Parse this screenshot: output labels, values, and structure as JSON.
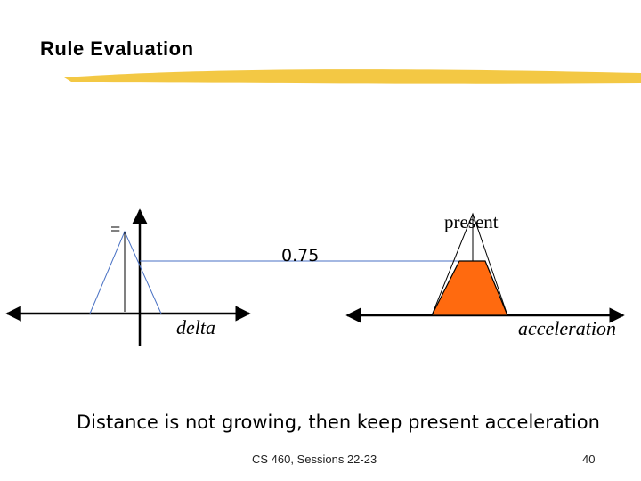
{
  "slide": {
    "title": "Rule Evaluation",
    "caption": "Distance is not growing, then keep present acceleration",
    "footer_course": "CS 460,  Sessions 22-23",
    "page_number": "40"
  },
  "diagram": {
    "left_set_symbol": "=",
    "left_axis_label": "delta",
    "level_label": "0.75",
    "right_set_label": "present",
    "right_axis_label": "acceleration",
    "membership_level": 0.75,
    "colors": {
      "axis": "#000000",
      "membership_line": "#4a72c4",
      "fill": "#ff6a0f",
      "title_bar": "#f2c230"
    }
  }
}
